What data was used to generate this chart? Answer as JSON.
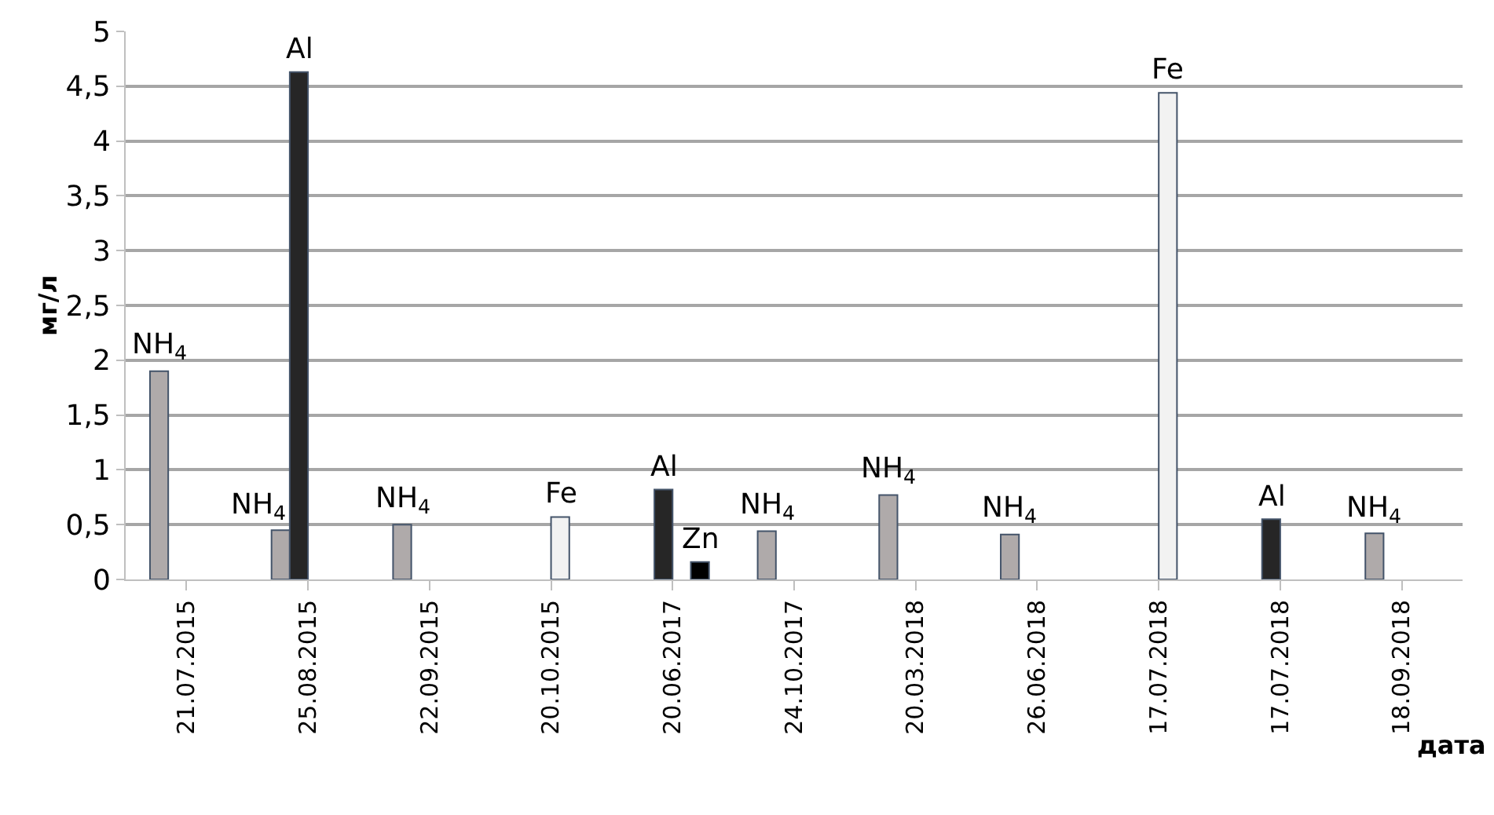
{
  "chart_data": {
    "type": "bar",
    "ylabel": "мг/л",
    "xlabel": "дата",
    "categories": [
      "21.07.2015",
      "25.08.2015",
      "22.09.2015",
      "20.10.2015",
      "20.06.2017",
      "24.10.2017",
      "20.03.2018",
      "26.06.2018",
      "17.07.2018",
      "17.07.2018",
      "18.09.2018"
    ],
    "series": [
      {
        "name": "NH$_{4}$",
        "color": "#afaaaa",
        "values": [
          1.9,
          0.45,
          0.5,
          null,
          null,
          0.44,
          0.77,
          0.41,
          null,
          null,
          0.42
        ]
      },
      {
        "name": "Al",
        "color": "#262626",
        "values": [
          null,
          4.63,
          null,
          null,
          0.82,
          null,
          null,
          null,
          null,
          0.55,
          null
        ]
      },
      {
        "name": "Fe",
        "color": "#f2f2f2",
        "values": [
          null,
          null,
          null,
          0.57,
          null,
          null,
          null,
          null,
          4.44,
          null,
          null
        ]
      },
      {
        "name": "Zn",
        "color": "#000000",
        "values": [
          null,
          null,
          null,
          null,
          0.16,
          null,
          null,
          null,
          null,
          null,
          null
        ]
      }
    ],
    "ylim": [
      0,
      5
    ],
    "yticks": [
      0,
      {
        "value": 0.5,
        "label": "0,5"
      },
      1,
      {
        "value": 1.5,
        "label": "1,5"
      },
      2,
      {
        "value": 2.5,
        "label": "2,5"
      },
      3,
      {
        "value": 3.5,
        "label": "3,5"
      },
      4,
      {
        "value": 4.5,
        "label": "4,5"
      },
      5
    ],
    "grid": "y",
    "legend": false
  }
}
